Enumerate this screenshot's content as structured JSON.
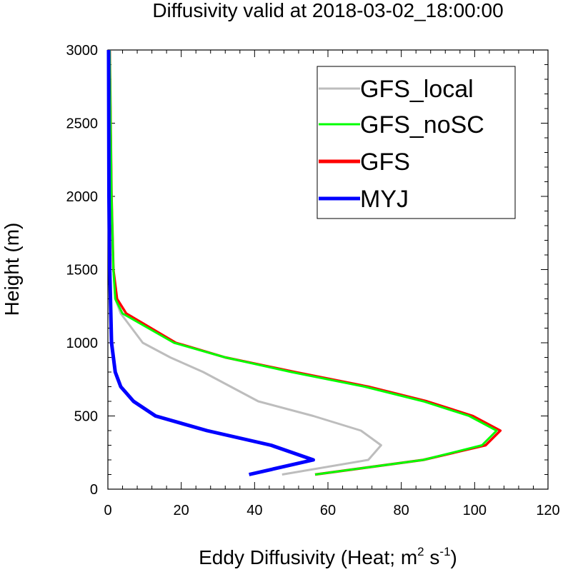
{
  "chart_data": {
    "type": "line",
    "title": "Diffusivity valid at 2018-03-02_18:00:00",
    "xlabel": "Eddy Diffusivity (Heat; m² s⁻¹)",
    "xlabel_parts": {
      "prefix": "Eddy Diffusivity (Heat; m",
      "sup1": "2",
      "mid": " s",
      "sup2": "-1",
      "suffix": ")"
    },
    "ylabel": "Height (m)",
    "xlim": [
      0,
      120
    ],
    "ylim": [
      0,
      3000
    ],
    "xticks": [
      "0",
      "20",
      "40",
      "60",
      "80",
      "100",
      "120"
    ],
    "yticks": [
      "0",
      "500",
      "1000",
      "1500",
      "2000",
      "2500",
      "3000"
    ],
    "grid": false,
    "legend_position": "top-right",
    "series": [
      {
        "name": "GFS_local",
        "color": "#bdbdbd",
        "points": [
          [
            47.5,
            100
          ],
          [
            71,
            200
          ],
          [
            74.5,
            300
          ],
          [
            69,
            400
          ],
          [
            56,
            500
          ],
          [
            41,
            600
          ],
          [
            26,
            800
          ],
          [
            17,
            900
          ],
          [
            9.5,
            1000
          ],
          [
            3.5,
            1200
          ],
          [
            2,
            1300
          ],
          [
            1.5,
            1500
          ],
          [
            1,
            2000
          ],
          [
            0.5,
            3000
          ]
        ]
      },
      {
        "name": "GFS_noSC",
        "color": "#00ff00",
        "points": [
          [
            56.5,
            100
          ],
          [
            86,
            200
          ],
          [
            102,
            300
          ],
          [
            106,
            400
          ],
          [
            98.5,
            500
          ],
          [
            86,
            600
          ],
          [
            70,
            700
          ],
          [
            50,
            800
          ],
          [
            32,
            900
          ],
          [
            18,
            1000
          ],
          [
            4,
            1200
          ],
          [
            2,
            1300
          ],
          [
            1.5,
            1500
          ],
          [
            1,
            2000
          ],
          [
            0.5,
            3000
          ]
        ]
      },
      {
        "name": "GFS",
        "color": "#ff0000",
        "points": [
          [
            56.5,
            100
          ],
          [
            86,
            200
          ],
          [
            103,
            300
          ],
          [
            107,
            400
          ],
          [
            99.5,
            500
          ],
          [
            87,
            600
          ],
          [
            71,
            700
          ],
          [
            51,
            800
          ],
          [
            32,
            900
          ],
          [
            18.5,
            1000
          ],
          [
            5,
            1200
          ],
          [
            2.5,
            1300
          ],
          [
            1.5,
            1500
          ],
          [
            1,
            2000
          ],
          [
            0.5,
            3000
          ]
        ]
      },
      {
        "name": "MYJ",
        "color": "#0000ff",
        "points": [
          [
            38.5,
            100
          ],
          [
            56,
            200
          ],
          [
            44.5,
            300
          ],
          [
            27,
            400
          ],
          [
            13,
            500
          ],
          [
            7,
            600
          ],
          [
            3.5,
            700
          ],
          [
            2,
            800
          ],
          [
            1.5,
            900
          ],
          [
            1,
            1000
          ],
          [
            0.5,
            1500
          ],
          [
            0.3,
            2000
          ],
          [
            0.2,
            3000
          ]
        ]
      }
    ]
  }
}
